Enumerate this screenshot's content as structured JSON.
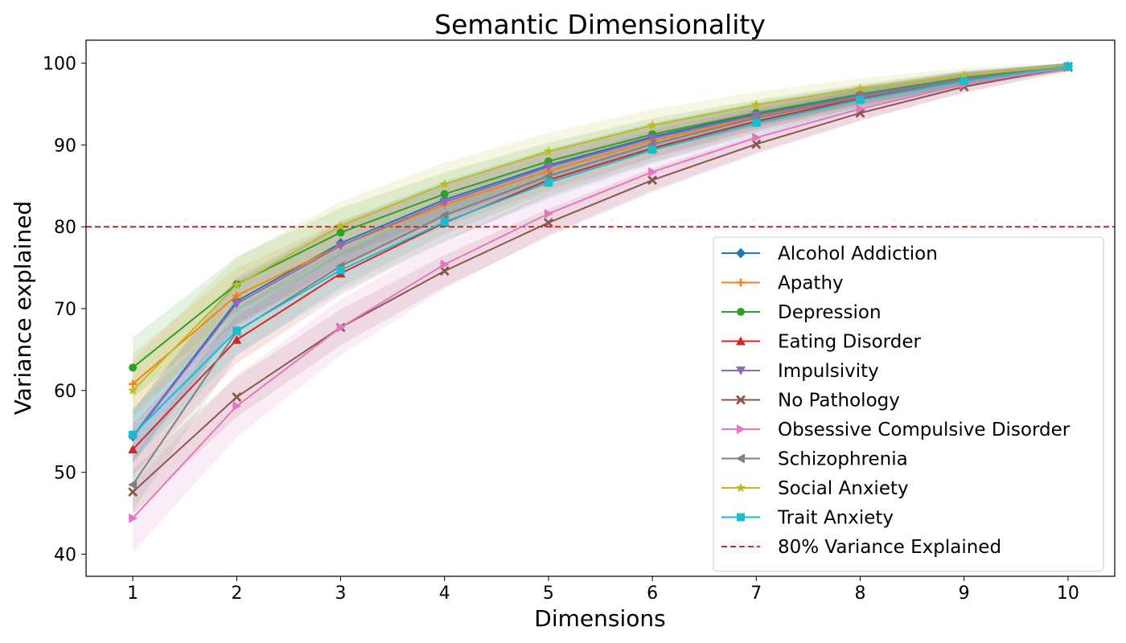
{
  "chart_data": {
    "type": "line",
    "title": "Semantic Dimensionality",
    "xlabel": "Dimensions",
    "ylabel": "Variance explained",
    "x": [
      1,
      2,
      3,
      4,
      5,
      6,
      7,
      8,
      9,
      10
    ],
    "xlim": [
      0.55,
      10.45
    ],
    "ylim": [
      37.3,
      102.8
    ],
    "xticks": [
      1,
      2,
      3,
      4,
      5,
      6,
      7,
      8,
      9,
      10
    ],
    "yticks": [
      40,
      50,
      60,
      70,
      80,
      90,
      100
    ],
    "grid": false,
    "legend_position": "lower-right",
    "threshold": {
      "value": 80,
      "label": "80% Variance Explained",
      "color": "#d62728",
      "style": "dashed"
    },
    "series": [
      {
        "name": "Alcohol Addiction",
        "color": "#1f77b4",
        "marker": "diamond",
        "values": [
          54.4,
          70.9,
          78.0,
          83.3,
          87.5,
          91.0,
          93.8,
          96.1,
          98.2,
          99.6
        ],
        "band": 3.0
      },
      {
        "name": "Apathy",
        "color": "#ff7f0e",
        "marker": "plus",
        "values": [
          60.8,
          71.6,
          77.7,
          82.7,
          86.8,
          90.5,
          93.4,
          95.9,
          98.0,
          99.6
        ],
        "band": 3.5
      },
      {
        "name": "Depression",
        "color": "#2ca02c",
        "marker": "circle",
        "values": [
          62.8,
          73.0,
          79.3,
          84.0,
          88.0,
          91.3,
          93.9,
          96.2,
          98.2,
          99.6
        ],
        "band": 3.5
      },
      {
        "name": "Eating Disorder",
        "color": "#d62728",
        "marker": "triangle-up",
        "values": [
          52.8,
          66.2,
          74.3,
          80.5,
          85.7,
          89.6,
          92.9,
          95.7,
          98.0,
          99.6
        ],
        "band": 3.0
      },
      {
        "name": "Impulsivity",
        "color": "#9467bd",
        "marker": "triangle-down",
        "values": [
          54.3,
          70.6,
          77.7,
          83.0,
          87.3,
          90.8,
          93.6,
          96.0,
          98.1,
          99.6
        ],
        "band": 3.0
      },
      {
        "name": "No Pathology",
        "color": "#8c564b",
        "marker": "x",
        "values": [
          47.6,
          59.2,
          67.7,
          74.6,
          80.5,
          85.7,
          90.1,
          93.9,
          97.1,
          99.5
        ],
        "band": 2.5
      },
      {
        "name": "Obsessive Compulsive Disorder",
        "color": "#e377c2",
        "marker": "triangle-right",
        "values": [
          44.4,
          58.1,
          67.7,
          75.4,
          81.6,
          86.7,
          90.9,
          94.4,
          97.4,
          99.5
        ],
        "band": 4.0
      },
      {
        "name": "Schizophrenia",
        "color": "#7f7f7f",
        "marker": "triangle-left",
        "values": [
          48.5,
          67.2,
          75.2,
          81.4,
          86.2,
          90.1,
          93.3,
          95.8,
          98.0,
          99.6
        ],
        "band": 3.0
      },
      {
        "name": "Social Anxiety",
        "color": "#bcbd22",
        "marker": "star",
        "values": [
          60.0,
          72.9,
          80.1,
          85.2,
          89.2,
          92.4,
          94.9,
          96.9,
          98.5,
          99.7
        ],
        "band": 3.5
      },
      {
        "name": "Trait Anxiety",
        "color": "#17becf",
        "marker": "square",
        "values": [
          54.6,
          67.3,
          74.7,
          80.6,
          85.4,
          89.4,
          92.7,
          95.5,
          97.8,
          99.6
        ],
        "band": 3.0
      }
    ]
  }
}
